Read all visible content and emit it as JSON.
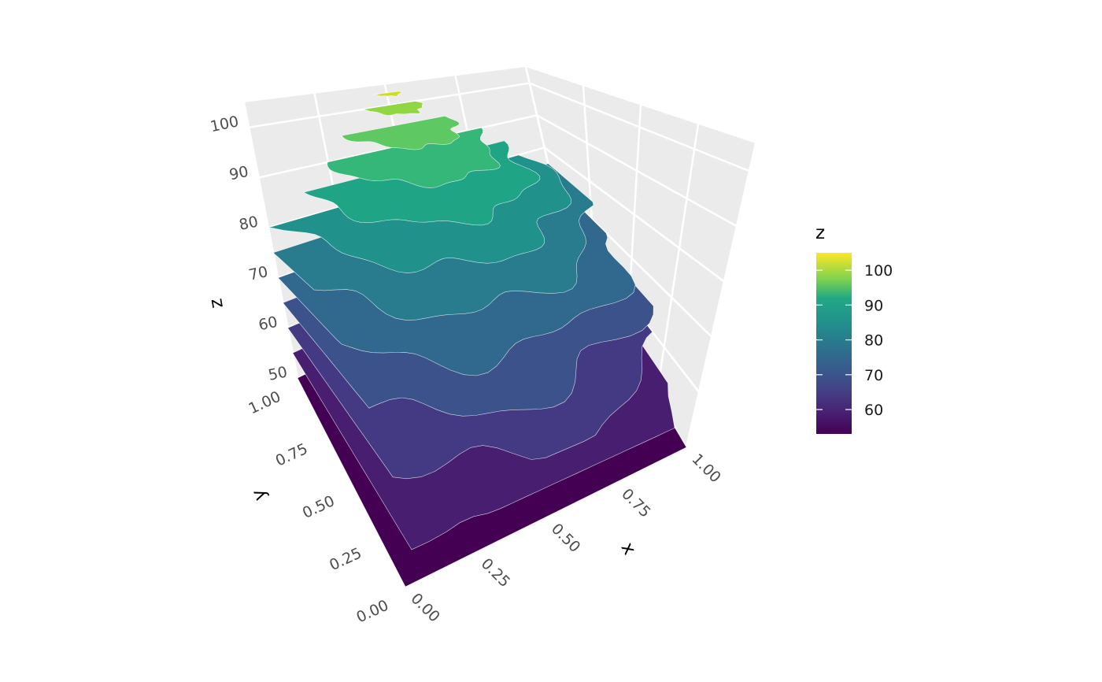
{
  "chart_data": {
    "type": "3d-contour-surface",
    "title": "",
    "xlabel": "x",
    "ylabel": "y",
    "zlabel": "z",
    "xlim": [
      0,
      1
    ],
    "ylim": [
      0,
      1
    ],
    "zlim": [
      50,
      105
    ],
    "x_ticks": [
      "0.00",
      "0.25",
      "0.50",
      "0.75",
      "1.00"
    ],
    "y_ticks": [
      "0.00",
      "0.25",
      "0.50",
      "0.75",
      "1.00"
    ],
    "z_ticks": [
      "50",
      "60",
      "70",
      "80",
      "90",
      "100"
    ],
    "z_tick_values": [
      50,
      60,
      70,
      80,
      90,
      100
    ],
    "contour_levels": [
      50,
      55,
      60,
      65,
      70,
      75,
      80,
      85,
      90,
      95,
      100,
      103
    ],
    "level_colors": [
      "#440154",
      "#481f70",
      "#443a83",
      "#3b528b",
      "#31688e",
      "#287c8e",
      "#21918c",
      "#20a486",
      "#35b779",
      "#5ec962",
      "#90d743",
      "#c8e020",
      "#fde725"
    ],
    "legend": {
      "title": "z",
      "placement": "right",
      "range": [
        53,
        105
      ],
      "ticks": [
        "100",
        "90",
        "80",
        "70",
        "60"
      ],
      "tick_values": [
        100,
        90,
        80,
        70,
        60
      ],
      "colormap": "viridis"
    },
    "grid": true,
    "panel_background": "#ebebeb"
  }
}
